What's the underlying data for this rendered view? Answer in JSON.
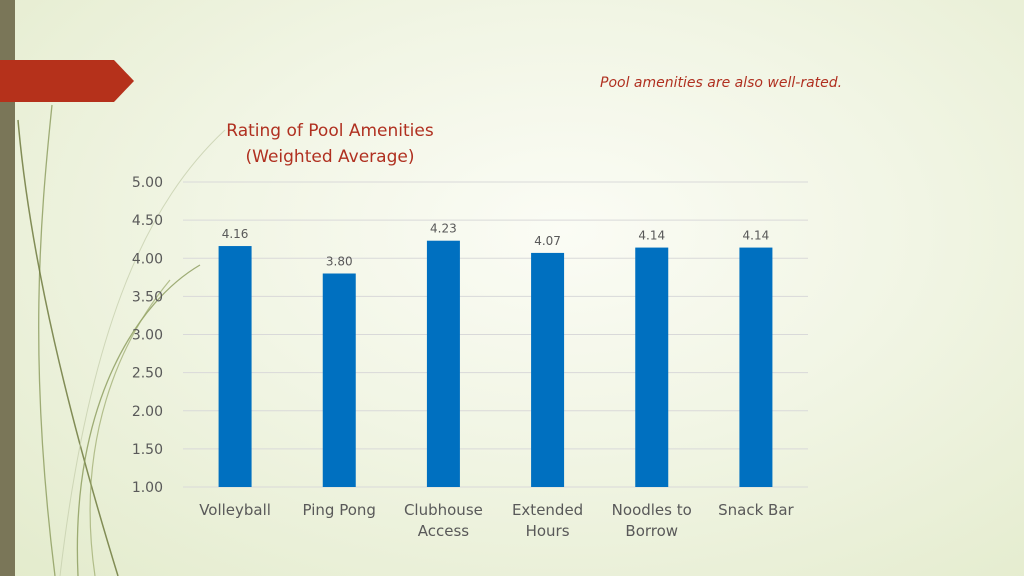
{
  "subtitle": "Pool amenities are also well-rated.",
  "colors": {
    "bar": "#0070c0",
    "title": "#b03020",
    "accent_arrow": "#b5311b",
    "left_bar": "#7a7658",
    "grid": "#d9d9d9",
    "tick_text": "#595959"
  },
  "chart_data": {
    "type": "bar",
    "title_lines": [
      "Rating of Pool Amenities",
      "(Weighted Average)"
    ],
    "categories": [
      [
        "Volleyball"
      ],
      [
        "Ping Pong"
      ],
      [
        "Clubhouse",
        "Access"
      ],
      [
        "Extended",
        "Hours"
      ],
      [
        "Noodles to",
        "Borrow"
      ],
      [
        "Snack Bar"
      ]
    ],
    "values": [
      4.16,
      3.8,
      4.23,
      4.07,
      4.14,
      4.14
    ],
    "data_labels": [
      "4.16",
      "3.80",
      "4.23",
      "4.07",
      "4.14",
      "4.14"
    ],
    "y_ticks": [
      "1.00",
      "1.50",
      "2.00",
      "2.50",
      "3.00",
      "3.50",
      "4.00",
      "4.50",
      "5.00"
    ],
    "ylim": [
      1,
      5
    ],
    "grid": true,
    "legend": false,
    "xlabel": "",
    "ylabel": ""
  }
}
